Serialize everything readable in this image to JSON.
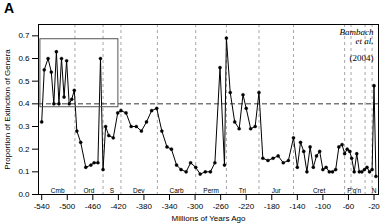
{
  "chart_data": {
    "type": "line",
    "title": "A",
    "x_label": "Millions of Years Ago",
    "y_label": "Proportion of Extinction of Genera",
    "xlim": [
      -545,
      -13
    ],
    "ylim": [
      0.0,
      0.75
    ],
    "xticks": [
      -540,
      -500,
      -460,
      -420,
      -380,
      -340,
      -300,
      -260,
      -220,
      -180,
      -140,
      -100,
      -60,
      -20
    ],
    "yticks": [
      {
        "value": 0.0,
        "label": "0.0"
      },
      0.1,
      0.2,
      0.3,
      0.4,
      0.5,
      0.6,
      0.7
    ],
    "grid": false,
    "color": "#000000",
    "marker": "circle",
    "line_style": "solid",
    "x": [
      -540,
      -536,
      -530,
      -525,
      -521,
      -517,
      -513,
      -509,
      -505,
      -501,
      -497,
      -493,
      -489,
      -485,
      -479,
      -471,
      -463,
      -458,
      -452,
      -448,
      -444,
      -440,
      -435,
      -428,
      -421,
      -416,
      -408,
      -400,
      -392,
      -384,
      -376,
      -368,
      -360,
      -352,
      -344,
      -337,
      -329,
      -322,
      -314,
      -307,
      -299,
      -292,
      -284,
      -276,
      -269,
      -261,
      -254,
      -251,
      -245,
      -238,
      -231,
      -225,
      -220,
      -213,
      -206,
      -200,
      -194,
      -186,
      -178,
      -170,
      -162,
      -154,
      -146,
      -140,
      -135,
      -130,
      -125,
      -120,
      -115,
      -110,
      -105,
      -100,
      -95,
      -90,
      -85,
      -80,
      -75,
      -70,
      -66,
      -62,
      -58,
      -55,
      -51,
      -47,
      -43,
      -39,
      -35,
      -31,
      -27,
      -23,
      -20,
      -17
    ],
    "values": [
      0.32,
      0.55,
      0.6,
      0.54,
      0.4,
      0.63,
      0.4,
      0.6,
      0.43,
      0.59,
      0.4,
      0.42,
      0.46,
      0.28,
      0.23,
      0.12,
      0.13,
      0.14,
      0.14,
      0.6,
      0.11,
      0.3,
      0.26,
      0.25,
      0.36,
      0.37,
      0.36,
      0.3,
      0.3,
      0.28,
      0.32,
      0.37,
      0.38,
      0.28,
      0.21,
      0.2,
      0.13,
      0.11,
      0.1,
      0.14,
      0.12,
      0.09,
      0.1,
      0.1,
      0.14,
      0.56,
      0.13,
      0.69,
      0.45,
      0.32,
      0.29,
      0.44,
      0.38,
      0.29,
      0.3,
      0.45,
      0.16,
      0.15,
      0.16,
      0.17,
      0.14,
      0.15,
      0.25,
      0.12,
      0.23,
      0.19,
      0.1,
      0.21,
      0.12,
      0.17,
      0.19,
      0.11,
      0.12,
      0.1,
      0.1,
      0.11,
      0.21,
      0.22,
      0.18,
      0.2,
      0.19,
      0.16,
      0.1,
      0.18,
      0.1,
      0.1,
      0.11,
      0.12,
      0.1,
      0.11,
      0.48,
      0.08
    ],
    "hline_y": 0.4,
    "period_boundaries": [
      -488,
      -444,
      -416,
      -359,
      -299,
      -251,
      -200,
      -146,
      -66,
      -56,
      -34,
      -23
    ],
    "period_labels": [
      {
        "text": "Cmb",
        "x": -515
      },
      {
        "text": "Ord",
        "x": -466
      },
      {
        "text": "S",
        "x": -430
      },
      {
        "text": "Dev",
        "x": -388
      },
      {
        "text": "Carb",
        "x": -329
      },
      {
        "text": "Perm",
        "x": -275
      },
      {
        "text": "Tri",
        "x": -226
      },
      {
        "text": "Jur",
        "x": -173
      },
      {
        "text": "Cret",
        "x": -106
      },
      {
        "text": "P'g'n",
        "x": -51
      },
      {
        "text": "N",
        "x": -20
      }
    ],
    "box": {
      "x0": -542,
      "x1": -420,
      "y0": 0.385,
      "y1": 0.685
    },
    "annotations": [
      "Bambach\net al.",
      "(2004)"
    ]
  }
}
